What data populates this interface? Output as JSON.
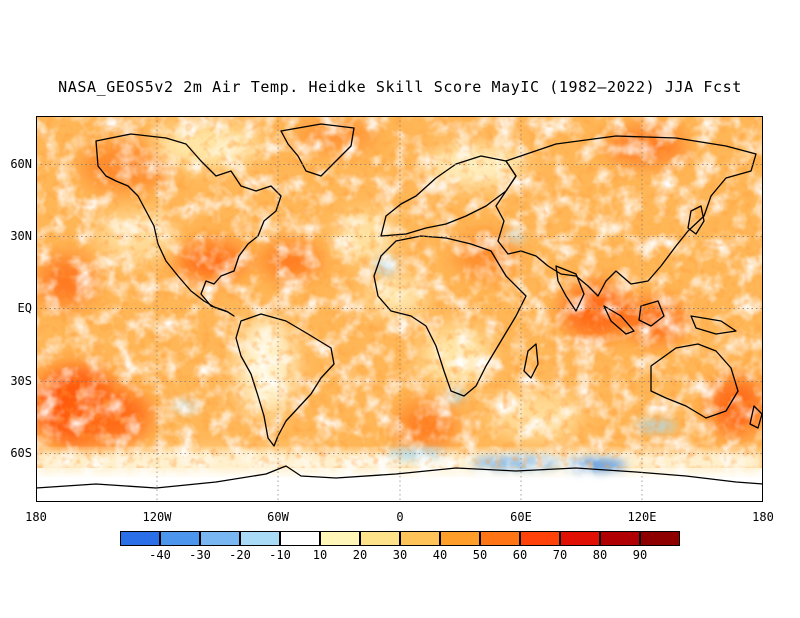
{
  "title": "NASA_GEOS5v2 2m Air Temp. Heidke Skill Score MayIC (1982–2022) JJA Fcst",
  "map": {
    "projection": "equirectangular",
    "lon_range": [
      -180,
      180
    ],
    "lat_range": [
      -78,
      78
    ],
    "grid_lines": "dotted",
    "coastlines": true,
    "lat_labels": [
      "60N",
      "30N",
      "EQ",
      "30S",
      "60S"
    ],
    "lon_labels": [
      "180",
      "120W",
      "60W",
      "0",
      "60E",
      "120E",
      "180"
    ],
    "dominant_values": "mostly 10 to 60, with red 60–80 patches over the SE Pacific, tropical Atlantic, Maritime Continent and N. Pacific; negative (blue) values along the Southern Ocean near 60S",
    "colors": {
      "ocean_hot": "#ff6a10",
      "ocean_warm": "#ffb04a",
      "land_mild": "#ffe08a",
      "white": "#ffffff",
      "cool": "#a8dcf5",
      "blue": "#4f95e8"
    }
  },
  "colorbar": {
    "labels": [
      "-40",
      "-30",
      "-20",
      "-10",
      "10",
      "20",
      "30",
      "40",
      "50",
      "60",
      "70",
      "80",
      "90"
    ],
    "colors": [
      "#2a6fe8",
      "#4d96ee",
      "#79b7f2",
      "#a9dbf7",
      "#ffffff",
      "#fff6b8",
      "#ffe38a",
      "#ffc35a",
      "#ff9f2a",
      "#ff7414",
      "#ff420a",
      "#e01005",
      "#b00004",
      "#8e0000"
    ]
  }
}
